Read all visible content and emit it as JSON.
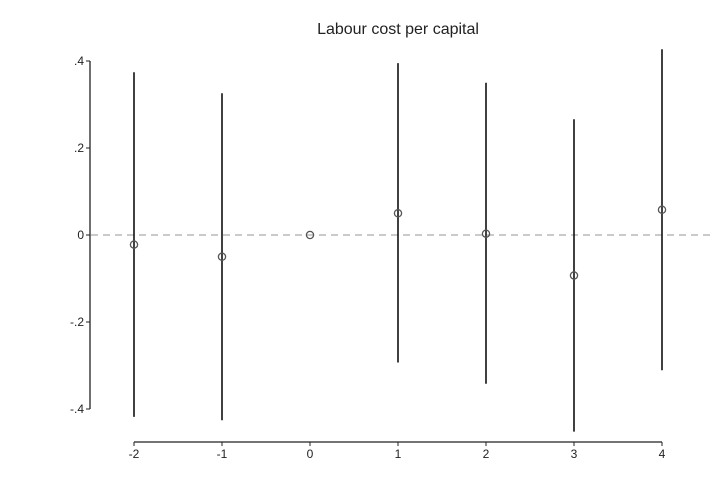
{
  "chart_data": {
    "type": "scatter",
    "title": "Labour cost per capital",
    "xlabel": "",
    "ylabel": "",
    "x": [
      -2,
      -1,
      0,
      1,
      2,
      3,
      4
    ],
    "x_tick_labels": [
      "-2",
      "-1",
      "0",
      "1",
      "2",
      "3",
      "4"
    ],
    "y_tick_labels": [
      ".4",
      ".2",
      "0",
      "-.2",
      "-.4"
    ],
    "y_ticks": [
      0.4,
      0.2,
      0,
      -0.2,
      -0.4
    ],
    "xlim": [
      -2,
      4
    ],
    "ylim": [
      -0.4,
      0.4
    ],
    "series": [
      {
        "estimates": [
          -0.022,
          -0.05,
          0.0,
          0.05,
          0.003,
          -0.093,
          0.058
        ],
        "ci_upper": [
          0.374,
          0.326,
          0.0,
          0.395,
          0.35,
          0.266,
          0.427
        ],
        "ci_lower": [
          -0.418,
          -0.426,
          0.0,
          -0.293,
          -0.342,
          -0.452,
          -0.311
        ]
      }
    ],
    "reference_line": {
      "y": 0,
      "style": "dashed"
    },
    "grid": false,
    "legend": "none",
    "colors": {
      "marker": "#555555",
      "ci": "#111111",
      "reference": "#aaaaaa",
      "axis": "#222222"
    }
  }
}
